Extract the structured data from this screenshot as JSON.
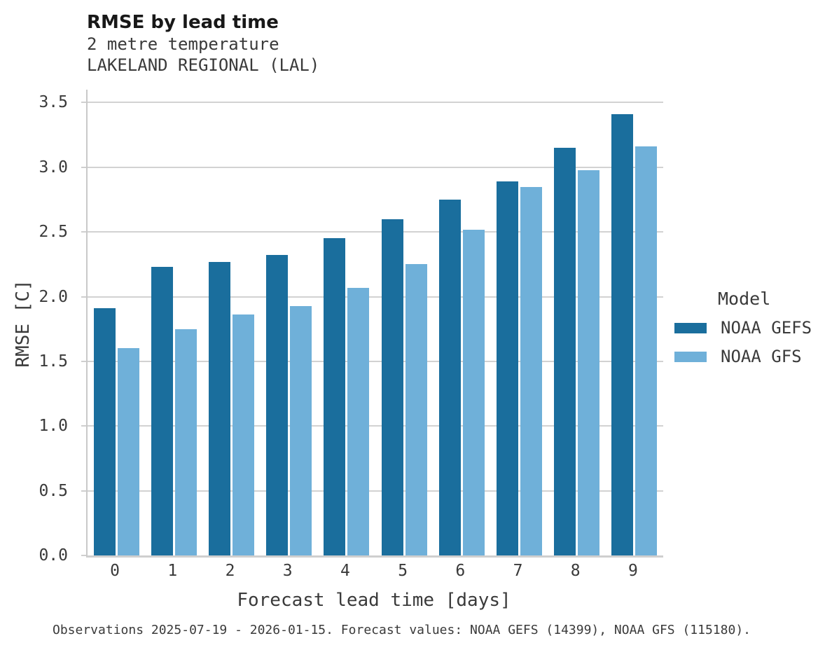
{
  "header": {
    "title": "RMSE by lead time",
    "subtitle_line1": "2 metre temperature",
    "subtitle_line2": "LAKELAND REGIONAL (LAL)"
  },
  "chart_data": {
    "type": "bar",
    "title": "RMSE by lead time",
    "subtitle": [
      "2 metre temperature",
      "LAKELAND REGIONAL (LAL)"
    ],
    "categories": [
      "0",
      "1",
      "2",
      "3",
      "4",
      "5",
      "6",
      "7",
      "8",
      "9"
    ],
    "series": [
      {
        "name": "NOAA GEFS",
        "color": "#1a6e9d",
        "values": [
          1.91,
          2.23,
          2.27,
          2.32,
          2.45,
          2.6,
          2.75,
          2.89,
          3.15,
          3.41
        ]
      },
      {
        "name": "NOAA GFS",
        "color": "#6fb0d9",
        "values": [
          1.6,
          1.75,
          1.86,
          1.93,
          2.07,
          2.25,
          2.52,
          2.85,
          2.98,
          3.16
        ]
      }
    ],
    "xlabel": "Forecast lead time [days]",
    "ylabel": "RMSE [C]",
    "ylim": [
      0,
      3.6
    ],
    "yticks": [
      0.0,
      0.5,
      1.0,
      1.5,
      2.0,
      2.5,
      3.0,
      3.5
    ],
    "ytick_labels": [
      "0.0",
      "0.5",
      "1.0",
      "1.5",
      "2.0",
      "2.5",
      "3.0",
      "3.5"
    ],
    "grid": "horizontal",
    "legend_title": "Model",
    "legend_position": "right",
    "colors": {
      "gridline": "#d2d2d2",
      "spine": "#c9c9c9",
      "text": "#3a3a3a",
      "title_text": "#181818"
    }
  },
  "footer": {
    "caption": "Observations 2025-07-19 - 2026-01-15. Forecast values: NOAA GEFS (14399), NOAA GFS (115180)."
  }
}
